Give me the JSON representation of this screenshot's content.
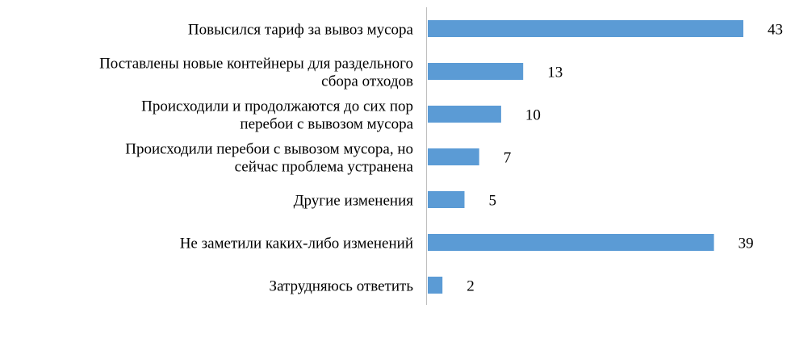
{
  "chart_data": {
    "type": "bar",
    "orientation": "horizontal",
    "categories": [
      [
        "Повысился тариф за вывоз мусора"
      ],
      [
        "Поставлены новые контейнеры для раздельного",
        "сбора отходов"
      ],
      [
        "Происходили и продолжаются до сих пор",
        "перебои с вывозом мусора"
      ],
      [
        "Происходили перебои с вывозом мусора, но",
        "сейчас проблема устранена"
      ],
      [
        "Другие изменения"
      ],
      [
        "Не заметили каких-либо изменений"
      ],
      [
        "Затрудняюсь ответить"
      ]
    ],
    "values": [
      43,
      13,
      10,
      7,
      5,
      39,
      2
    ],
    "data_labels": [
      "43",
      "13",
      "10",
      "7",
      "5",
      "39",
      "2"
    ],
    "title": "",
    "xlabel": "",
    "ylabel": "",
    "xlim": [
      0,
      45
    ],
    "grid": false,
    "legend": "none",
    "colors": {
      "bar": "#5B9BD5",
      "axis": "#BFBFBF",
      "text": "#000000"
    }
  }
}
